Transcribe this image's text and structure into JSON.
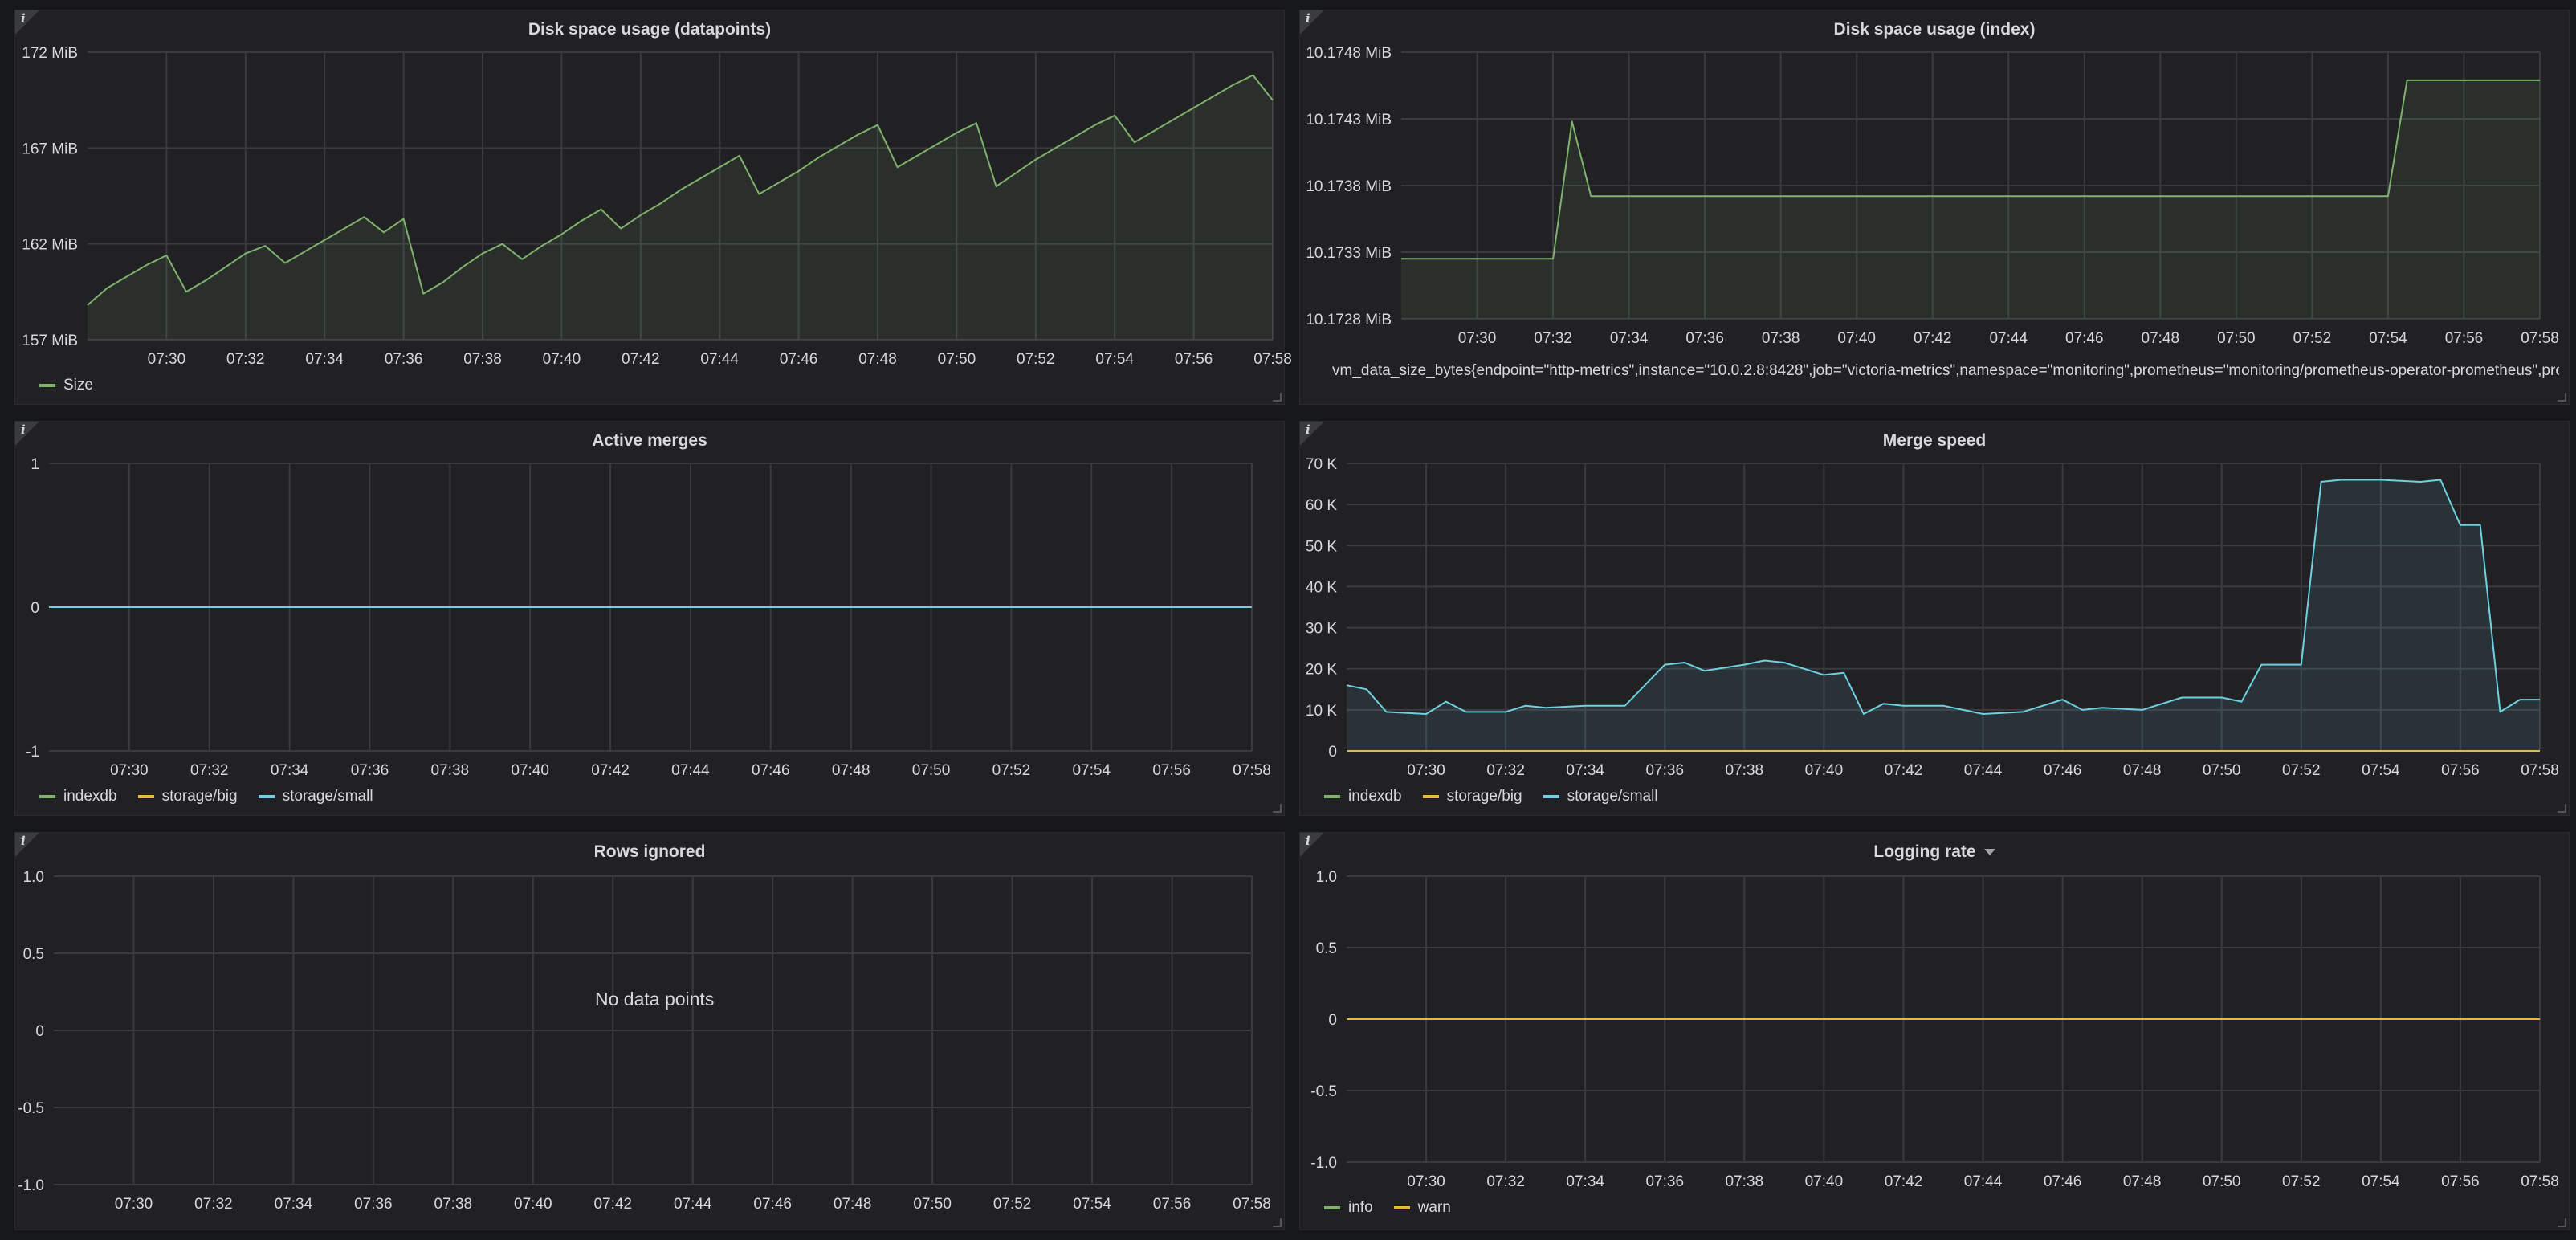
{
  "colors": {
    "green": "#7eb26d",
    "orange": "#eab839",
    "teal": "#6ed0e0",
    "grid": "#3a3b3f",
    "background": "#212124"
  },
  "time_ticks": [
    "07:30",
    "07:32",
    "07:34",
    "07:36",
    "07:38",
    "07:40",
    "07:42",
    "07:44",
    "07:46",
    "07:48",
    "07:50",
    "07:52",
    "07:54",
    "07:56",
    "07:58"
  ],
  "panels": {
    "datapoints": {
      "title": "Disk space usage (datapoints)",
      "info_icon": "i",
      "y_ticks": [
        "172 MiB",
        "167 MiB",
        "162 MiB",
        "157 MiB"
      ],
      "legend": [
        {
          "label": "Size",
          "color": "#7eb26d"
        }
      ]
    },
    "index": {
      "title": "Disk space usage (index)",
      "info_icon": "i",
      "y_ticks": [
        "10.1748 MiB",
        "10.1743 MiB",
        "10.1738 MiB",
        "10.1733 MiB",
        "10.1728 MiB"
      ],
      "legend": [
        {
          "label": "vm_data_size_bytes{endpoint=\"http-metrics\",instance=\"10.0.2.8:8428\",job=\"victoria-metrics\",namespace=\"monitoring\",prometheus=\"monitoring/prometheus-operator-prometheus\",prometheus_",
          "color": "#7eb26d"
        }
      ]
    },
    "active_merges": {
      "title": "Active merges",
      "info_icon": "i",
      "y_ticks": [
        "1",
        "0",
        "-1"
      ],
      "legend": [
        {
          "label": "indexdb",
          "color": "#7eb26d"
        },
        {
          "label": "storage/big",
          "color": "#eab839"
        },
        {
          "label": "storage/small",
          "color": "#6ed0e0"
        }
      ]
    },
    "merge_speed": {
      "title": "Merge speed",
      "info_icon": "i",
      "y_ticks": [
        "70 K",
        "60 K",
        "50 K",
        "40 K",
        "30 K",
        "20 K",
        "10 K",
        "0"
      ],
      "legend": [
        {
          "label": "indexdb",
          "color": "#7eb26d"
        },
        {
          "label": "storage/big",
          "color": "#eab839"
        },
        {
          "label": "storage/small",
          "color": "#6ed0e0"
        }
      ]
    },
    "rows_ignored": {
      "title": "Rows ignored",
      "info_icon": "i",
      "y_ticks": [
        "1.0",
        "0.5",
        "0",
        "-0.5",
        "-1.0"
      ],
      "no_data": "No data points",
      "legend": []
    },
    "logging_rate": {
      "title": "Logging rate",
      "info_icon": "i",
      "y_ticks": [
        "1.0",
        "0.5",
        "0",
        "-0.5",
        "-1.0"
      ],
      "legend": [
        {
          "label": "info",
          "color": "#7eb26d"
        },
        {
          "label": "warn",
          "color": "#eab839"
        }
      ]
    }
  },
  "chart_data": [
    {
      "type": "area",
      "title": "Disk space usage (datapoints)",
      "units": "MiB",
      "ylim": [
        157,
        172
      ],
      "x": [
        "07:28",
        "07:28:30",
        "07:29",
        "07:29:30",
        "07:30",
        "07:30:30",
        "07:31",
        "07:31:30",
        "07:32",
        "07:32:30",
        "07:33",
        "07:33:30",
        "07:34",
        "07:34:30",
        "07:35",
        "07:35:30",
        "07:36",
        "07:36:30",
        "07:37",
        "07:37:30",
        "07:38",
        "07:38:30",
        "07:39",
        "07:39:30",
        "07:40",
        "07:40:30",
        "07:41",
        "07:41:30",
        "07:42",
        "07:42:30",
        "07:43",
        "07:43:30",
        "07:44",
        "07:44:30",
        "07:45",
        "07:45:30",
        "07:46",
        "07:46:30",
        "07:47",
        "07:47:30",
        "07:48",
        "07:48:30",
        "07:49",
        "07:49:30",
        "07:50",
        "07:50:30",
        "07:51",
        "07:51:30",
        "07:52",
        "07:52:30",
        "07:53",
        "07:53:30",
        "07:54",
        "07:54:30",
        "07:55",
        "07:55:30",
        "07:56",
        "07:56:30",
        "07:57",
        "07:57:30",
        "07:58"
      ],
      "series": [
        {
          "name": "Size",
          "values": [
            158.8,
            159.7,
            160.3,
            160.9,
            161.4,
            159.5,
            160.1,
            160.8,
            161.5,
            161.9,
            161.0,
            161.6,
            162.2,
            162.8,
            163.4,
            162.6,
            163.3,
            159.4,
            160.0,
            160.8,
            161.5,
            162.0,
            161.2,
            161.9,
            162.5,
            163.2,
            163.8,
            162.8,
            163.5,
            164.1,
            164.8,
            165.4,
            166.0,
            166.6,
            164.6,
            165.2,
            165.8,
            166.5,
            167.1,
            167.7,
            168.2,
            166.0,
            166.6,
            167.2,
            167.8,
            168.3,
            165.0,
            165.7,
            166.4,
            167.0,
            167.6,
            168.2,
            168.7,
            167.3,
            167.9,
            168.5,
            169.1,
            169.7,
            170.3,
            170.8,
            169.5
          ]
        }
      ]
    },
    {
      "type": "area",
      "title": "Disk space usage (index)",
      "units": "MiB",
      "ylim": [
        10.1728,
        10.1748
      ],
      "x": [
        "07:28",
        "07:32",
        "07:32:30",
        "07:33",
        "07:54",
        "07:54:30",
        "07:58"
      ],
      "series": [
        {
          "name": "vm_data_size_bytes",
          "values": [
            10.17325,
            10.17325,
            10.17428,
            10.17372,
            10.17372,
            10.17459,
            10.17459
          ]
        }
      ]
    },
    {
      "type": "line",
      "title": "Active merges",
      "ylim": [
        -1,
        1
      ],
      "x": [
        "07:28",
        "07:58"
      ],
      "series": [
        {
          "name": "indexdb",
          "values": [
            0,
            0
          ]
        },
        {
          "name": "storage/big",
          "values": [
            0,
            0
          ]
        },
        {
          "name": "storage/small",
          "values": [
            0,
            0
          ]
        }
      ]
    },
    {
      "type": "area",
      "title": "Merge speed",
      "ylim": [
        0,
        70000
      ],
      "x": [
        "07:28",
        "07:28:30",
        "07:29",
        "07:30",
        "07:30:30",
        "07:31",
        "07:32",
        "07:32:30",
        "07:33",
        "07:34",
        "07:35",
        "07:36",
        "07:36:30",
        "07:37",
        "07:38",
        "07:38:30",
        "07:39",
        "07:40",
        "07:40:30",
        "07:41",
        "07:41:30",
        "07:42",
        "07:43",
        "07:44",
        "07:45",
        "07:46",
        "07:46:30",
        "07:47",
        "07:48",
        "07:49",
        "07:50",
        "07:50:30",
        "07:51",
        "07:52",
        "07:52:30",
        "07:53",
        "07:54",
        "07:55",
        "07:55:30",
        "07:56",
        "07:56:30",
        "07:57",
        "07:57:30",
        "07:58"
      ],
      "series": [
        {
          "name": "indexdb",
          "values": [
            0,
            0,
            0,
            0,
            0,
            0,
            0,
            0,
            0,
            0,
            0,
            0,
            0,
            0,
            0,
            0,
            0,
            0,
            0,
            0,
            0,
            0,
            0,
            0,
            0,
            0,
            0,
            0,
            0,
            0,
            0,
            0,
            0,
            0,
            0,
            0,
            0,
            0,
            0,
            0,
            0,
            0,
            0,
            0
          ]
        },
        {
          "name": "storage/big",
          "values": [
            0,
            0,
            0,
            0,
            0,
            0,
            0,
            0,
            0,
            0,
            0,
            0,
            0,
            0,
            0,
            0,
            0,
            0,
            0,
            0,
            0,
            0,
            0,
            0,
            0,
            0,
            0,
            0,
            0,
            0,
            0,
            0,
            0,
            0,
            0,
            0,
            0,
            0,
            0,
            0,
            0,
            0,
            0,
            0
          ]
        },
        {
          "name": "storage/small",
          "values": [
            16000,
            15000,
            9500,
            9000,
            12000,
            9500,
            9500,
            11000,
            10500,
            11000,
            11000,
            21000,
            21500,
            19500,
            21000,
            22000,
            21500,
            18500,
            19000,
            9000,
            11500,
            11000,
            11000,
            9000,
            9500,
            12500,
            10000,
            10500,
            10000,
            13000,
            13000,
            12000,
            21000,
            21000,
            65500,
            66000,
            66000,
            65500,
            66000,
            55000,
            55000,
            9500,
            12500,
            12500
          ]
        }
      ]
    },
    {
      "type": "line",
      "title": "Rows ignored",
      "ylim": [
        -1,
        1
      ],
      "series": []
    },
    {
      "type": "line",
      "title": "Logging rate",
      "ylim": [
        -1,
        1
      ],
      "x": [
        "07:28",
        "07:58"
      ],
      "series": [
        {
          "name": "info",
          "values": [
            0,
            0
          ]
        },
        {
          "name": "warn",
          "values": [
            0,
            0
          ]
        }
      ]
    }
  ]
}
